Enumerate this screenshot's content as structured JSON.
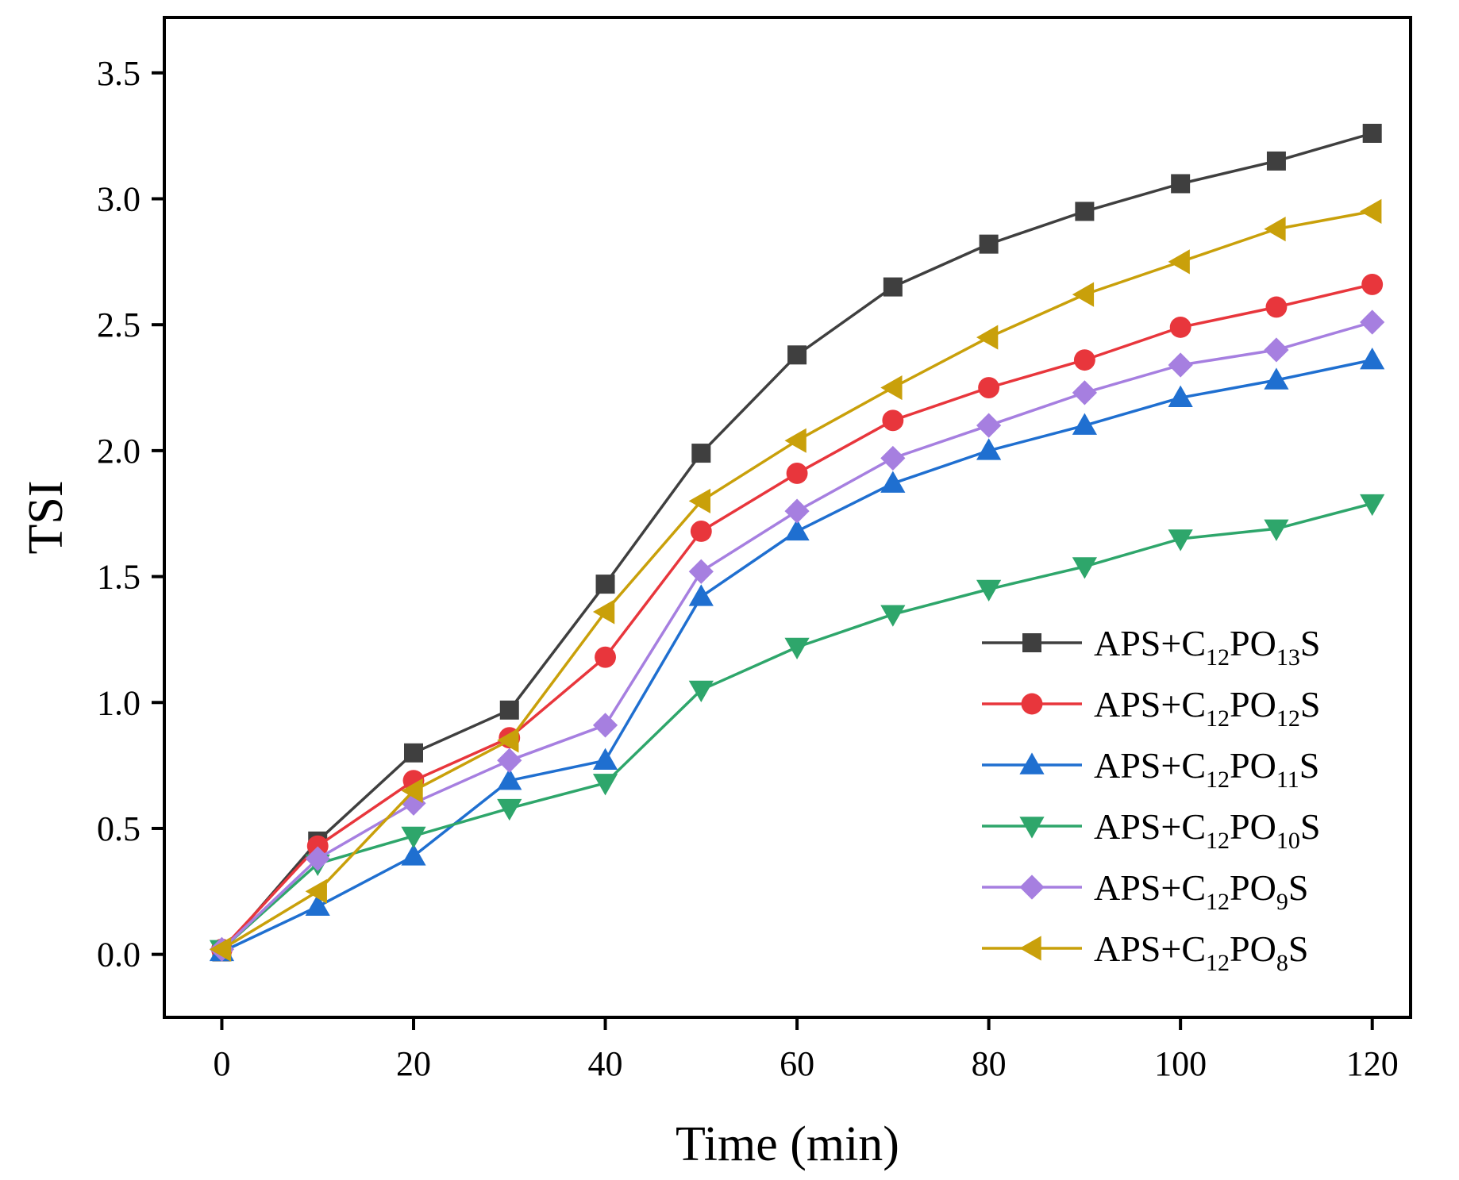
{
  "chart_data": {
    "type": "line",
    "xlabel": "Time (min)",
    "ylabel": "TSI",
    "xlim": [
      -6,
      124
    ],
    "ylim": [
      -0.25,
      3.72
    ],
    "xticks": [
      0,
      20,
      40,
      60,
      80,
      100,
      120
    ],
    "xtick_labels": [
      "0",
      "20",
      "40",
      "60",
      "80",
      "100",
      "120"
    ],
    "yticks": [
      0.0,
      0.5,
      1.0,
      1.5,
      2.0,
      2.5,
      3.0,
      3.5
    ],
    "ytick_labels": [
      "0.0",
      "0.5",
      "1.0",
      "1.5",
      "2.0",
      "2.5",
      "3.0",
      "3.5"
    ],
    "grid": false,
    "legend_position": "bottom-right",
    "x": [
      0,
      10,
      20,
      30,
      40,
      50,
      60,
      70,
      80,
      90,
      100,
      110,
      120
    ],
    "series": [
      {
        "name": "APS+C12PO13S",
        "label": {
          "prefix": "APS+C",
          "sub1": "12",
          "mid": "PO",
          "sub2": "13",
          "suffix": "S"
        },
        "color": "#3f3f3f",
        "marker": "square",
        "values": [
          0.01,
          0.45,
          0.8,
          0.97,
          1.47,
          1.99,
          2.38,
          2.65,
          2.82,
          2.95,
          3.06,
          3.15,
          3.26
        ]
      },
      {
        "name": "APS+C12PO12S",
        "label": {
          "prefix": "APS+C",
          "sub1": "12",
          "mid": "PO",
          "sub2": "12",
          "suffix": "S"
        },
        "color": "#e8363c",
        "marker": "circle",
        "values": [
          0.02,
          0.43,
          0.69,
          0.86,
          1.18,
          1.68,
          1.91,
          2.12,
          2.25,
          2.36,
          2.49,
          2.57,
          2.66
        ]
      },
      {
        "name": "APS+C12PO11S",
        "label": {
          "prefix": "APS+C",
          "sub1": "12",
          "mid": "PO",
          "sub2": "11",
          "suffix": "S"
        },
        "color": "#1f6fd0",
        "marker": "triangle-up",
        "values": [
          0.01,
          0.19,
          0.39,
          0.69,
          0.77,
          1.42,
          1.68,
          1.87,
          2.0,
          2.1,
          2.21,
          2.28,
          2.36
        ]
      },
      {
        "name": "APS+C12PO10S",
        "label": {
          "prefix": "APS+C",
          "sub1": "12",
          "mid": "PO",
          "sub2": "10",
          "suffix": "S"
        },
        "color": "#2ea66b",
        "marker": "triangle-down",
        "values": [
          0.02,
          0.36,
          0.47,
          0.58,
          0.68,
          1.05,
          1.22,
          1.35,
          1.45,
          1.54,
          1.65,
          1.69,
          1.79
        ]
      },
      {
        "name": "APS+C12PO9S",
        "label": {
          "prefix": "APS+C",
          "sub1": "12",
          "mid": "PO",
          "sub2": "9",
          "suffix": "S"
        },
        "color": "#a67fe0",
        "marker": "diamond",
        "values": [
          0.02,
          0.38,
          0.6,
          0.77,
          0.91,
          1.52,
          1.76,
          1.97,
          2.1,
          2.23,
          2.34,
          2.4,
          2.51
        ]
      },
      {
        "name": "APS+C12PO8S",
        "label": {
          "prefix": "APS+C",
          "sub1": "12",
          "mid": "PO",
          "sub2": "8",
          "suffix": "S"
        },
        "color": "#c9a00a",
        "marker": "triangle-left",
        "values": [
          0.02,
          0.25,
          0.65,
          0.85,
          1.36,
          1.8,
          2.04,
          2.25,
          2.45,
          2.62,
          2.75,
          2.88,
          2.95
        ]
      }
    ]
  }
}
